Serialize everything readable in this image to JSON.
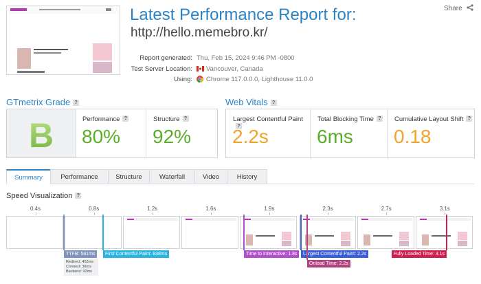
{
  "share": "Share",
  "help_icon": "?",
  "header": {
    "title": "Latest Performance Report for:",
    "url": "http://hello.memebro.kr/"
  },
  "details": [
    {
      "label": "Report generated:",
      "value": "Thu, Feb 15, 2024 9:46 PM -0800"
    },
    {
      "label": "Test Server Location:",
      "value": "Vancouver, Canada"
    },
    {
      "label": "Using:",
      "value": "Chrome 117.0.0.0, Lighthouse 11.0.0"
    }
  ],
  "grade": {
    "title": "GTmetrix Grade",
    "grade": "B",
    "metrics": [
      {
        "label": "Performance",
        "value": "80%"
      },
      {
        "label": "Structure",
        "value": "92%"
      }
    ]
  },
  "web_vitals": {
    "title": "Web Vitals",
    "metrics": [
      {
        "label": "Largest Contentful Paint",
        "value": "2.2s"
      },
      {
        "label": "Total Blocking Time",
        "value": "6ms"
      },
      {
        "label": "Cumulative Layout Shift",
        "value": "0.18"
      }
    ]
  },
  "tabs": [
    "Summary",
    "Performance",
    "Structure",
    "Waterfall",
    "Video",
    "History"
  ],
  "speed_visualization": {
    "title": "Speed Visualization",
    "ticks": [
      "0.4s",
      "0.8s",
      "1.2s",
      "1.6s",
      "1.9s",
      "2.3s",
      "2.7s",
      "3.1s"
    ],
    "markers": [
      {
        "label": "TTFB: 581ms",
        "details": [
          "Redirect: 453ms",
          "Connect: 36ms",
          "Backend: 92ms"
        ]
      },
      {
        "label": "First Contentful Paint: 838ms"
      },
      {
        "label": "Time to Interactive: 1.8s"
      },
      {
        "label": "Largest Contentful Paint: 2.2s"
      },
      {
        "label": "Onload Time: 2.2s"
      },
      {
        "label": "Fully Loaded Time: 3.1s"
      }
    ]
  }
}
